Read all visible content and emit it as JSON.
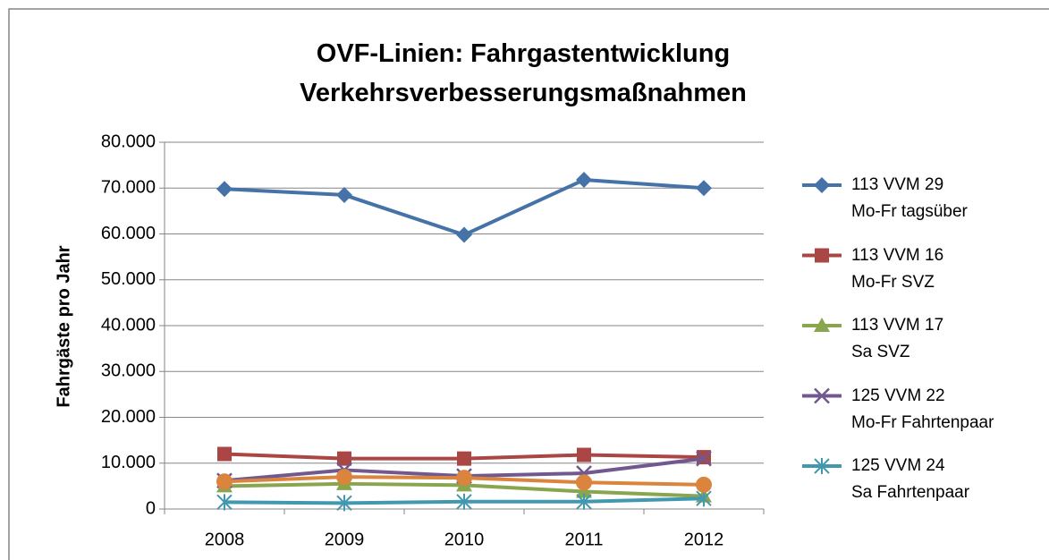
{
  "chart_data": {
    "type": "line",
    "title": "OVF-Linien: Fahrgastentwicklung\nVerkehrsverbesserungsmaßnahmen",
    "y_label": "Fahrgäste pro Jahr",
    "categories": [
      "2008",
      "2009",
      "2010",
      "2011",
      "2012"
    ],
    "ylim": [
      0,
      80000
    ],
    "yticks": [
      0,
      {
        "value": 10000,
        "label": "10.000"
      },
      {
        "value": 20000,
        "label": "20.000"
      },
      {
        "value": 30000,
        "label": "30.000"
      },
      {
        "value": 40000,
        "label": "40.000"
      },
      {
        "value": 50000,
        "label": "50.000"
      },
      {
        "value": 60000,
        "label": "60.000"
      },
      {
        "value": 70000,
        "label": "70.000"
      },
      {
        "value": 80000,
        "label": "80.000"
      }
    ],
    "grid": true,
    "legend": "right",
    "series": [
      {
        "name": "113 VVM 29\nMo-Fr tagsüber",
        "color": "#4572a7",
        "marker": "diamond",
        "values": [
          69800,
          68500,
          59800,
          71800,
          70000
        ]
      },
      {
        "name": "113 VVM 16\nMo-Fr SVZ",
        "color": "#aa4643",
        "marker": "square",
        "values": [
          12000,
          11000,
          11000,
          11800,
          11300
        ]
      },
      {
        "name": "113 VVM 17\nSa SVZ",
        "color": "#89a54e",
        "marker": "triangle",
        "values": [
          5000,
          5500,
          5200,
          3800,
          2800
        ]
      },
      {
        "name": "125 VVM 22\nMo-Fr Fahrtenpaar",
        "color": "#71588f",
        "marker": "x",
        "values": [
          6200,
          8500,
          7200,
          7800,
          11000
        ]
      },
      {
        "name": "125 VVM 24\nSa Fahrtenpaar",
        "color": "#4198af",
        "marker": "star",
        "values": [
          1500,
          1300,
          1600,
          1600,
          2300
        ]
      },
      {
        "color": "#db843d",
        "marker": "circle",
        "values": [
          6000,
          7000,
          6800,
          5800,
          5300
        ]
      }
    ]
  }
}
